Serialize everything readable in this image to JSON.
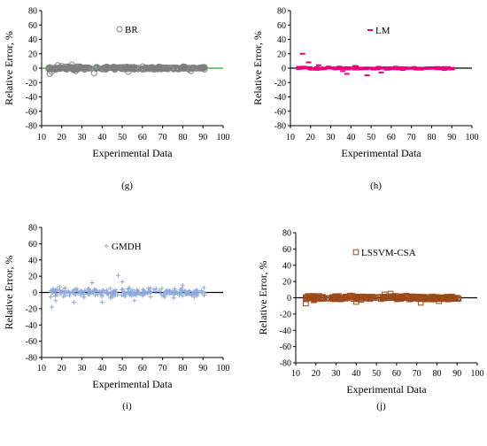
{
  "chart_data": [
    {
      "type": "scatter",
      "panel_label": "(g)",
      "series": [
        {
          "name": "BR",
          "marker": "circle",
          "color": "#7f7f7f"
        }
      ],
      "zero_line_color": "#2ca02c",
      "xlabel": "Experimental Data",
      "ylabel": "Relative Error, %",
      "xlim": [
        10,
        100
      ],
      "ylim": [
        -80,
        80
      ],
      "xticks": [
        10,
        20,
        30,
        40,
        50,
        60,
        70,
        80,
        90,
        100
      ],
      "yticks": [
        80,
        60,
        40,
        20,
        0,
        -20,
        -40,
        -60,
        -80
      ],
      "grid": false,
      "legend_position": "top-center",
      "x_range_points": [
        13,
        91
      ],
      "error_band": [
        -3,
        3
      ],
      "outliers": [
        [
          14,
          -8
        ],
        [
          15,
          -5
        ],
        [
          18,
          4
        ],
        [
          20,
          3
        ],
        [
          22,
          2
        ],
        [
          25,
          5
        ],
        [
          27,
          -4
        ],
        [
          36,
          -7
        ],
        [
          53,
          -5
        ],
        [
          84,
          -4
        ]
      ]
    },
    {
      "type": "scatter",
      "panel_label": "(h)",
      "series": [
        {
          "name": "LM",
          "marker": "dash",
          "color": "#e6007e"
        }
      ],
      "zero_line_color": "#000000",
      "xlabel": "Experimental Data",
      "ylabel": "Relative Error, %",
      "xlim": [
        10,
        100
      ],
      "ylim": [
        -80,
        80
      ],
      "xticks": [
        10,
        20,
        30,
        40,
        50,
        60,
        70,
        80,
        90,
        100
      ],
      "yticks": [
        80,
        60,
        40,
        20,
        0,
        -20,
        -40,
        -60,
        -80
      ],
      "grid": false,
      "legend_position": "top-center",
      "x_range_points": [
        14,
        91
      ],
      "error_band": [
        -3,
        3
      ],
      "outliers": [
        [
          16,
          20
        ],
        [
          19,
          8
        ],
        [
          24,
          4
        ],
        [
          36,
          -4
        ],
        [
          38,
          -8
        ],
        [
          42,
          3
        ],
        [
          48,
          -10
        ],
        [
          55,
          -6
        ],
        [
          62,
          2
        ]
      ]
    },
    {
      "type": "scatter",
      "panel_label": "(i)",
      "series": [
        {
          "name": "GMDH",
          "marker": "plus",
          "color": "#8eaadb"
        }
      ],
      "zero_line_color": "#000000",
      "xlabel": "Experimental Data",
      "ylabel": "Relative Error, %",
      "xlim": [
        10,
        100
      ],
      "ylim": [
        -80,
        80
      ],
      "xticks": [
        10,
        20,
        30,
        40,
        50,
        60,
        70,
        80,
        90,
        100
      ],
      "yticks": [
        80,
        60,
        40,
        20,
        0,
        -20,
        -40,
        -60,
        -80
      ],
      "grid": false,
      "legend_position": "top-center",
      "x_range_points": [
        14,
        91
      ],
      "error_band": [
        -8,
        8
      ],
      "outliers": [
        [
          15,
          -18
        ],
        [
          17,
          -10
        ],
        [
          19,
          7
        ],
        [
          26,
          -12
        ],
        [
          35,
          12
        ],
        [
          40,
          -12
        ],
        [
          48,
          21
        ],
        [
          50,
          13
        ],
        [
          56,
          -10
        ],
        [
          80,
          9
        ]
      ]
    },
    {
      "type": "scatter",
      "panel_label": "(j)",
      "series": [
        {
          "name": "LSSVM-CSA",
          "marker": "square",
          "color": "#9c4a1a"
        }
      ],
      "zero_line_color": "#000000",
      "xlabel": "Experimental Data",
      "ylabel": "Relative Error, %",
      "xlim": [
        10,
        100
      ],
      "ylim": [
        -80,
        80
      ],
      "xticks": [
        10,
        20,
        30,
        40,
        50,
        60,
        70,
        80,
        90,
        100
      ],
      "yticks": [
        80,
        60,
        40,
        20,
        0,
        -20,
        -40,
        -60,
        -80
      ],
      "grid": false,
      "legend_position": "top-center",
      "x_range_points": [
        14,
        91
      ],
      "error_band": [
        -3,
        3
      ],
      "outliers": [
        [
          15,
          -7
        ],
        [
          16,
          2
        ],
        [
          19,
          -3
        ],
        [
          40,
          -5
        ],
        [
          54,
          4
        ],
        [
          57,
          5
        ],
        [
          72,
          -6
        ],
        [
          81,
          -4
        ]
      ]
    }
  ]
}
